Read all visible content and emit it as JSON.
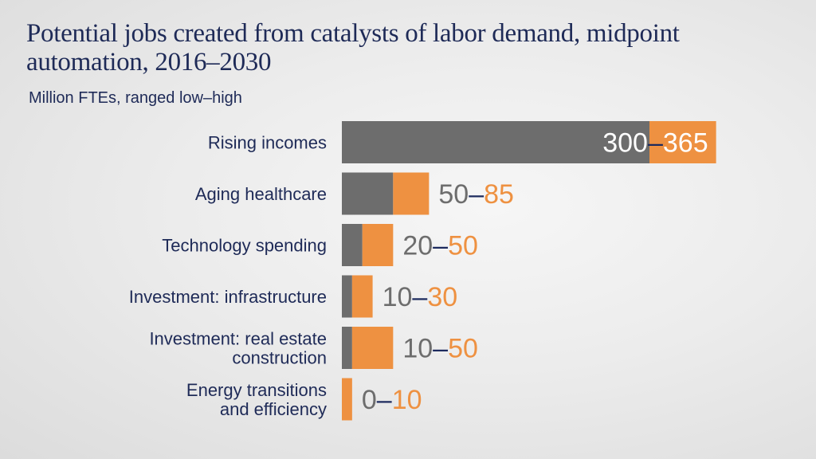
{
  "chart_data": {
    "type": "bar",
    "orientation": "horizontal",
    "stacked_range": true,
    "title": "Potential jobs created from catalysts of labor demand, midpoint automation, 2016–2030",
    "subtitle": "Million FTEs, ranged low–high",
    "categories": [
      [
        "Rising incomes"
      ],
      [
        "Aging healthcare"
      ],
      [
        "Technology spending"
      ],
      [
        "Investment: infrastructure"
      ],
      [
        "Investment: real estate",
        "construction"
      ],
      [
        "Energy transitions",
        "and efficiency"
      ]
    ],
    "series": [
      {
        "name": "low",
        "values": [
          300,
          50,
          20,
          10,
          10,
          0
        ]
      },
      {
        "name": "high",
        "values": [
          365,
          85,
          50,
          30,
          50,
          10
        ]
      }
    ],
    "data_labels": [
      {
        "low": "300",
        "sep": "–",
        "high": "365"
      },
      {
        "low": "50",
        "sep": "–",
        "high": "85"
      },
      {
        "low": "20",
        "sep": "–",
        "high": "50"
      },
      {
        "low": "10",
        "sep": "–",
        "high": "30"
      },
      {
        "low": "10",
        "sep": "–",
        "high": "50"
      },
      {
        "low": "0",
        "sep": "–",
        "high": "10"
      }
    ],
    "xlim": [
      0,
      365
    ],
    "grid": false,
    "colors": {
      "low": "#6d6d6d",
      "high": "#ee9141",
      "separator": "#1c2a5e",
      "text": "#1e2a57"
    }
  }
}
